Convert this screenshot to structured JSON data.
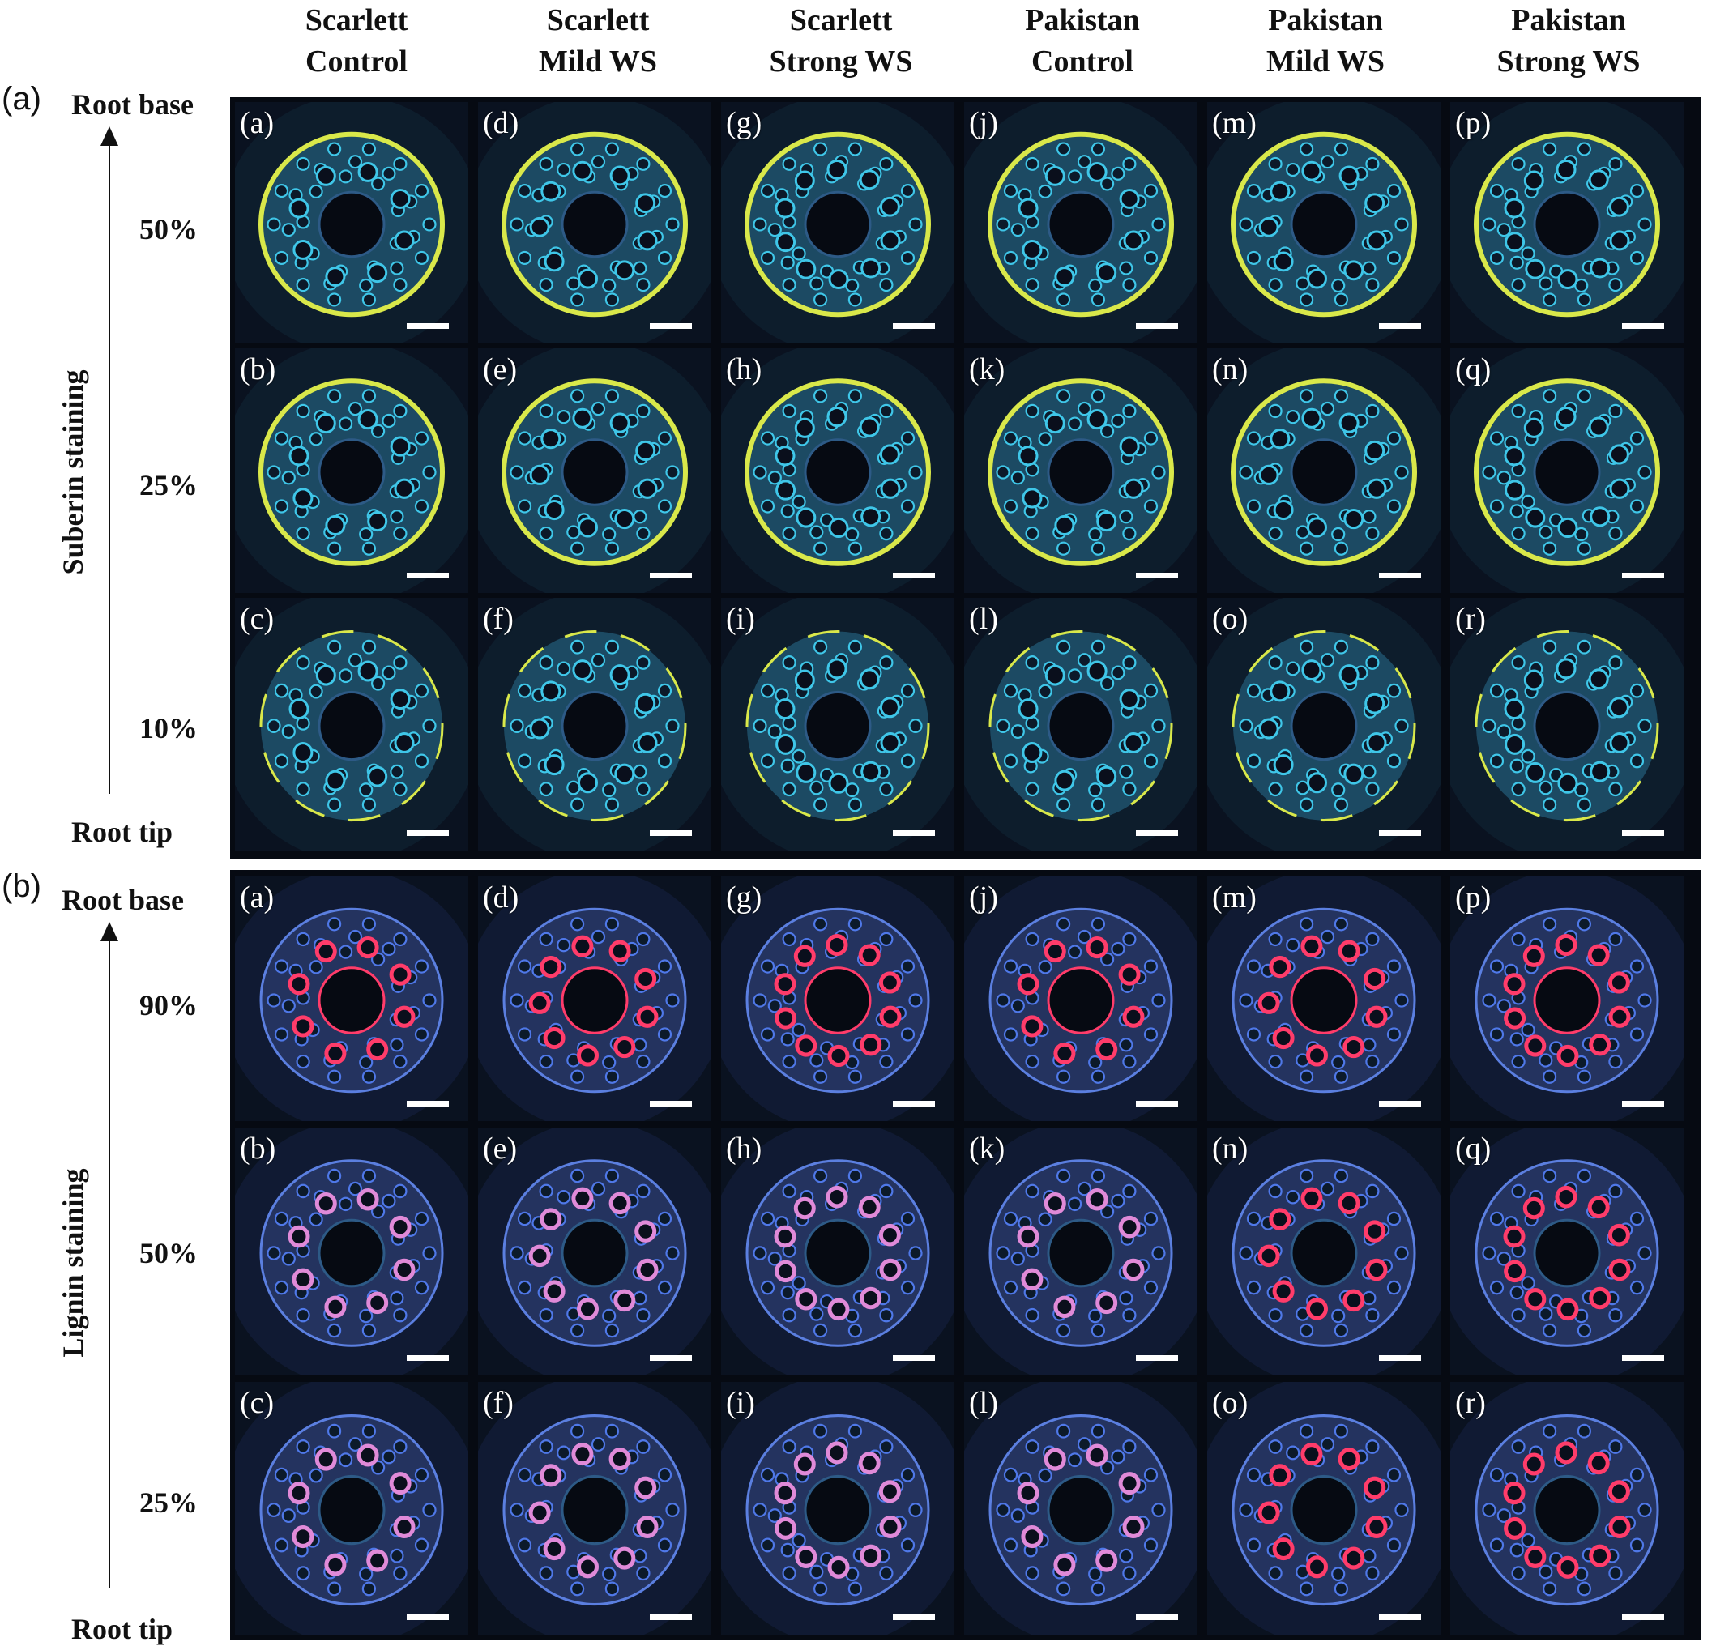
{
  "columns": [
    "Scarlett\nControl",
    "Scarlett\nMild WS",
    "Scarlett\nStrong WS",
    "Pakistan\nControl",
    "Pakistan\nMild WS",
    "Pakistan\nStrong WS"
  ],
  "col_titles": [
    {
      "line1": "Scarlett",
      "line2": "Control"
    },
    {
      "line1": "Scarlett",
      "line2": "Mild WS"
    },
    {
      "line1": "Scarlett",
      "line2": "Strong WS"
    },
    {
      "line1": "Pakistan",
      "line2": "Control"
    },
    {
      "line1": "Pakistan",
      "line2": "Mild WS"
    },
    {
      "line1": "Pakistan",
      "line2": "Strong WS"
    }
  ],
  "section_a": {
    "label": "(a)",
    "top": "Root base",
    "bottom": "Root tip",
    "axis_title": "Suberin staining",
    "rows": [
      "50%",
      "25%",
      "10%"
    ],
    "letters": [
      [
        "(a)",
        "(d)",
        "(g)",
        "(j)",
        "(m)",
        "(p)"
      ],
      [
        "(b)",
        "(e)",
        "(h)",
        "(k)",
        "(n)",
        "(q)"
      ],
      [
        "(c)",
        "(f)",
        "(i)",
        "(l)",
        "(o)",
        "(r)"
      ]
    ]
  },
  "section_b": {
    "label": "(b)",
    "top": "Root base",
    "bottom": "Root tip",
    "axis_title": "Lignin staining",
    "rows": [
      "90%",
      "50%",
      "25%"
    ],
    "letters": [
      [
        "(a)",
        "(d)",
        "(g)",
        "(j)",
        "(m)",
        "(p)"
      ],
      [
        "(b)",
        "(e)",
        "(h)",
        "(k)",
        "(n)",
        "(q)"
      ],
      [
        "(c)",
        "(f)",
        "(i)",
        "(l)",
        "(o)",
        "(r)"
      ]
    ]
  },
  "colors": {
    "suberin_cell": "#3fc6e8",
    "suberin_ring": "#d9e84a",
    "lignin_cell": "#4f78e8",
    "lignin_xylem": "#ff3c6a",
    "background": "#0a1220"
  }
}
